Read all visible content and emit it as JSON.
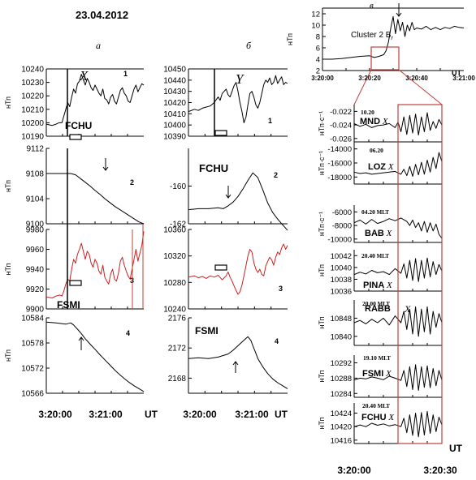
{
  "date": "23.04.2012",
  "column_letters": [
    "а",
    "б",
    "в"
  ],
  "time_axis": {
    "unit": "UT",
    "left_ticks": [
      "3:20:00",
      "3:21:00"
    ],
    "right_ticks": [
      "3:20:00",
      "3:20:30"
    ],
    "top_ticks": [
      "3:20:00",
      "3:20:20",
      "3:20:40",
      "3:21:00"
    ]
  },
  "chart_data": [
    {
      "id": "a1",
      "type": "line",
      "ylabel": "нТп",
      "station": "FCHU",
      "component": "X",
      "index": "1",
      "color": "#000000",
      "yticks": [
        10190,
        10200,
        10210,
        10220,
        10230,
        10240
      ],
      "ylim": [
        10190,
        10240
      ],
      "xlim": [
        0,
        100
      ],
      "x": [
        0,
        6,
        10,
        13,
        16,
        18,
        20,
        22,
        24,
        26,
        28,
        30,
        32,
        34,
        36,
        38,
        40,
        42,
        44,
        46,
        48,
        50,
        52,
        54,
        56,
        58,
        60,
        62,
        64,
        66,
        68,
        70,
        72,
        74,
        76,
        78,
        80,
        82,
        84,
        86,
        88,
        90,
        92,
        94,
        96,
        98,
        100
      ],
      "y": [
        10199,
        10198,
        10199,
        10200,
        10200,
        10205,
        10210,
        10215,
        10212,
        10219,
        10225,
        10222,
        10229,
        10231,
        10236,
        10232,
        10228,
        10233,
        10230,
        10226,
        10224,
        10228,
        10225,
        10222,
        10220,
        10225,
        10218,
        10217,
        10214,
        10219,
        10221,
        10216,
        10214,
        10219,
        10224,
        10226,
        10222,
        10220,
        10216,
        10215,
        10220,
        10225,
        10228,
        10223,
        10226,
        10229,
        10228
      ]
    },
    {
      "id": "a2",
      "type": "line",
      "ylabel": "нТп",
      "index": "2",
      "color": "#000000",
      "yticks": [
        9100,
        9104,
        9108,
        9112
      ],
      "ylim": [
        9100,
        9112
      ],
      "xlim": [
        0,
        100
      ],
      "x": [
        0,
        10,
        20,
        25,
        30,
        35,
        40,
        45,
        50,
        55,
        60,
        65,
        70,
        75,
        80,
        85,
        90,
        95,
        100
      ],
      "y": [
        9108,
        9108,
        9108,
        9108,
        9107.8,
        9107.2,
        9106.6,
        9106,
        9105.3,
        9104.7,
        9104,
        9103.4,
        9102.8,
        9102.3,
        9101.8,
        9101.3,
        9100.8,
        9100.3,
        9100
      ]
    },
    {
      "id": "a3",
      "type": "line",
      "ylabel": "нТп",
      "station": "FSMI",
      "index": "3",
      "color": "#cc2020",
      "yticks": [
        9900,
        9920,
        9940,
        9960,
        9980
      ],
      "ylim": [
        9900,
        9980
      ],
      "xlim": [
        0,
        100
      ],
      "x": [
        0,
        6,
        10,
        14,
        16,
        18,
        20,
        22,
        24,
        26,
        28,
        30,
        32,
        34,
        36,
        38,
        40,
        42,
        44,
        46,
        48,
        50,
        52,
        54,
        56,
        58,
        60,
        62,
        64,
        66,
        68,
        70,
        72,
        74,
        76,
        78,
        80,
        82,
        84,
        86,
        88,
        90,
        92,
        94,
        96,
        98,
        100
      ],
      "y": [
        9912,
        9911,
        9913,
        9914,
        9913,
        9918,
        9925,
        9930,
        9928,
        9940,
        9950,
        9946,
        9955,
        9960,
        9966,
        9958,
        9950,
        9958,
        9955,
        9946,
        9942,
        9950,
        9946,
        9938,
        9935,
        9944,
        9932,
        9928,
        9925,
        9935,
        9940,
        9930,
        9928,
        9936,
        9948,
        9952,
        9944,
        9938,
        9933,
        9930,
        9940,
        9950,
        9960,
        9948,
        9956,
        9964,
        9978
      ]
    },
    {
      "id": "a4",
      "type": "line",
      "ylabel": "нТп",
      "index": "4",
      "color": "#000000",
      "yticks": [
        10566,
        10572,
        10578,
        10584
      ],
      "ylim": [
        10566,
        10584
      ],
      "xlim": [
        0,
        100
      ],
      "x": [
        0,
        10,
        20,
        25,
        28,
        32,
        36,
        40,
        45,
        50,
        55,
        60,
        65,
        70,
        75,
        80,
        85,
        90,
        95,
        100
      ],
      "y": [
        10583,
        10582.8,
        10582.5,
        10582.8,
        10582.3,
        10581.3,
        10580.2,
        10579,
        10577.7,
        10576.5,
        10575.2,
        10574,
        10572.8,
        10571.6,
        10570.5,
        10569.5,
        10568.6,
        10567.8,
        10567.1,
        10566.4
      ]
    },
    {
      "id": "b1",
      "type": "line",
      "station": "",
      "component": "Y",
      "index": "1",
      "color": "#000000",
      "yticks": [
        10390,
        10400,
        10410,
        10420,
        10430,
        10440,
        10450
      ],
      "ylim": [
        10390,
        10450
      ],
      "xlim": [
        0,
        100
      ],
      "x": [
        0,
        6,
        10,
        14,
        18,
        22,
        26,
        30,
        32,
        34,
        36,
        38,
        40,
        42,
        44,
        46,
        48,
        50,
        52,
        54,
        56,
        58,
        60,
        62,
        64,
        66,
        68,
        70,
        72,
        74,
        76,
        78,
        80,
        82,
        84,
        86,
        88,
        90,
        92,
        94,
        96,
        98,
        100
      ],
      "y": [
        10412,
        10414,
        10413,
        10415,
        10416,
        10417,
        10420,
        10425,
        10422,
        10428,
        10430,
        10432,
        10427,
        10425,
        10430,
        10435,
        10438,
        10430,
        10420,
        10412,
        10402,
        10407,
        10418,
        10428,
        10430,
        10425,
        10418,
        10415,
        10420,
        10428,
        10436,
        10440,
        10438,
        10442,
        10436,
        10438,
        10444,
        10437,
        10440,
        10443,
        10436,
        10438,
        10437
      ]
    },
    {
      "id": "b2",
      "type": "line",
      "station": "FCHU",
      "index": "2",
      "color": "#000000",
      "yticks": [
        -162,
        -160
      ],
      "ylim": [
        -162,
        -158
      ],
      "xlim": [
        0,
        100
      ],
      "x": [
        0,
        10,
        20,
        30,
        35,
        40,
        45,
        50,
        55,
        60,
        65,
        70,
        75,
        80,
        85,
        90,
        95,
        100
      ],
      "y": [
        -161.25,
        -161.2,
        -161.2,
        -161.15,
        -161.2,
        -161.05,
        -160.85,
        -160.55,
        -160.15,
        -159.7,
        -159.3,
        -159.55,
        -160.2,
        -160.9,
        -161.4,
        -161.75,
        -162.05,
        -162.35
      ]
    },
    {
      "id": "b3",
      "type": "line",
      "index": "3",
      "color": "#cc2020",
      "yticks": [
        10240,
        10280,
        10320,
        10360
      ],
      "ylim": [
        10240,
        10360
      ],
      "xlim": [
        0,
        100
      ],
      "x": [
        0,
        6,
        10,
        14,
        18,
        22,
        26,
        30,
        34,
        38,
        40,
        42,
        44,
        46,
        48,
        50,
        52,
        54,
        56,
        58,
        60,
        62,
        64,
        66,
        68,
        70,
        72,
        74,
        76,
        78,
        80,
        82,
        84,
        86,
        88,
        90,
        92,
        94,
        96,
        98,
        100
      ],
      "y": [
        10288,
        10290,
        10287,
        10289,
        10286,
        10290,
        10288,
        10291,
        10284,
        10290,
        10296,
        10288,
        10282,
        10275,
        10268,
        10262,
        10266,
        10276,
        10290,
        10305,
        10320,
        10330,
        10326,
        10310,
        10300,
        10295,
        10300,
        10292,
        10290,
        10305,
        10312,
        10318,
        10314,
        10306,
        10318,
        10326,
        10322,
        10332,
        10338,
        10330,
        10336
      ]
    },
    {
      "id": "b4",
      "type": "line",
      "station": "FSMI",
      "index": "4",
      "color": "#000000",
      "yticks": [
        2168,
        2172,
        2176
      ],
      "ylim": [
        2166,
        2176
      ],
      "xlim": [
        0,
        100
      ],
      "x": [
        0,
        10,
        20,
        30,
        40,
        45,
        50,
        55,
        60,
        63,
        65,
        68,
        70,
        75,
        80,
        85,
        90,
        95,
        100
      ],
      "y": [
        2170.6,
        2170.7,
        2170.6,
        2170.8,
        2171.2,
        2171.7,
        2172.3,
        2172.9,
        2173.5,
        2173,
        2172.3,
        2171.3,
        2170.6,
        2169.5,
        2168.6,
        2167.9,
        2167.4,
        2167,
        2166.6
      ]
    },
    {
      "id": "v0",
      "type": "line",
      "ylabel": "нТп",
      "title": "Cluster 2 B",
      "title_sub": "r",
      "color": "#000000",
      "yticks": [
        2,
        4,
        6,
        8,
        10,
        12
      ],
      "ylim": [
        2,
        13
      ],
      "xlim": [
        0,
        60
      ],
      "x": [
        0,
        4,
        8,
        12,
        16,
        20,
        22,
        24,
        26,
        27,
        28,
        29,
        30,
        31,
        32,
        33,
        34,
        35,
        36,
        37,
        38,
        39,
        40,
        42,
        44,
        46,
        48,
        50,
        52,
        54,
        56,
        58,
        60
      ],
      "y": [
        4,
        4,
        4.1,
        4.3,
        4.5,
        4.6,
        4.3,
        4.5,
        4.8,
        5.5,
        7,
        9.5,
        11.5,
        8.5,
        11,
        9,
        10.5,
        8,
        10,
        9,
        10.5,
        9.2,
        9.5,
        9.3,
        9.8,
        9.2,
        9.6,
        9.2,
        9.6,
        9.4,
        9.8,
        9.6,
        9.5
      ]
    },
    {
      "id": "v1",
      "type": "line",
      "ylabel": "нТп·с⁻¹",
      "station": "MND",
      "component": "X",
      "mlt": "10.20",
      "mlt_unit": "",
      "color": "#000000",
      "yticks": [
        -0.022,
        -0.024,
        -0.026
      ],
      "ylim": [
        -0.0265,
        -0.021
      ],
      "xlim": [
        0,
        30
      ],
      "x": [
        0,
        2,
        4,
        6,
        8,
        10,
        12,
        14,
        15,
        16,
        17,
        18,
        19,
        20,
        21,
        22,
        23,
        24,
        25,
        26,
        27,
        28,
        29,
        30
      ],
      "y": [
        -0.0238,
        -0.0242,
        -0.0239,
        -0.0244,
        -0.0241,
        -0.024,
        -0.0238,
        -0.0244,
        -0.0236,
        -0.025,
        -0.0228,
        -0.0254,
        -0.0226,
        -0.0252,
        -0.0224,
        -0.0255,
        -0.0228,
        -0.025,
        -0.0222,
        -0.0248,
        -0.0235,
        -0.0245,
        -0.0232,
        -0.024
      ]
    },
    {
      "id": "v2",
      "type": "line",
      "ylabel": "нТп·с⁻¹",
      "station": "LOZ",
      "component": "X",
      "mlt": "06.20",
      "mlt_unit": "",
      "color": "#000000",
      "yticks": [
        -14000,
        -16000,
        -18000
      ],
      "ylim": [
        -19000,
        -13000
      ],
      "xlim": [
        0,
        30
      ],
      "x": [
        0,
        2,
        4,
        6,
        8,
        10,
        12,
        14,
        16,
        17,
        18,
        19,
        20,
        21,
        22,
        23,
        24,
        25,
        26,
        27,
        28,
        29,
        30
      ],
      "y": [
        -17300,
        -17500,
        -17400,
        -17600,
        -17500,
        -17400,
        -17300,
        -17200,
        -17600,
        -16900,
        -17800,
        -16500,
        -17900,
        -16200,
        -17700,
        -15900,
        -17600,
        -15600,
        -17300,
        -15200,
        -16800,
        -14500,
        -15800
      ]
    },
    {
      "id": "v3",
      "type": "line",
      "ylabel": "нТп·с⁻¹",
      "station": "BAB",
      "component": "X",
      "mlt": "04.20",
      "mlt_unit": "MLT",
      "color": "#000000",
      "yticks": [
        -6000,
        -8000,
        -10000
      ],
      "ylim": [
        -10500,
        -5000
      ],
      "xlim": [
        0,
        30
      ],
      "x": [
        0,
        2,
        4,
        6,
        8,
        10,
        12,
        14,
        16,
        18,
        19,
        20,
        21,
        22,
        23,
        24,
        25,
        26,
        27,
        28,
        29,
        30
      ],
      "y": [
        -7600,
        -7200,
        -7800,
        -7100,
        -7700,
        -7400,
        -7000,
        -7300,
        -6900,
        -7400,
        -8000,
        -7200,
        -8300,
        -7600,
        -8800,
        -7400,
        -9000,
        -7600,
        -8800,
        -7800,
        -9300,
        -9900
      ]
    },
    {
      "id": "v4",
      "type": "line",
      "ylabel": "нТп",
      "station": "PINA",
      "component": "X",
      "mlt": "20.40",
      "mlt_unit": "MLT",
      "color": "#000000",
      "yticks": [
        10042,
        10040,
        10038,
        10036
      ],
      "ylim": [
        10036,
        10043
      ],
      "xlim": [
        0,
        30
      ],
      "x": [
        0,
        2,
        4,
        6,
        8,
        10,
        12,
        14,
        16,
        17,
        18,
        19,
        20,
        21,
        22,
        23,
        24,
        25,
        26,
        27,
        28,
        29,
        30
      ],
      "y": [
        10038.8,
        10039.2,
        10038.9,
        10039.5,
        10039.1,
        10039.3,
        10038.8,
        10039.8,
        10039,
        10040.6,
        10038.2,
        10041.2,
        10037.8,
        10041.5,
        10037.6,
        10041.2,
        10038.2,
        10041.6,
        10038.4,
        10041,
        10038.8,
        10040.5,
        10039.4
      ]
    },
    {
      "id": "v5",
      "type": "line",
      "ylabel": "нТп",
      "station": "RABB",
      "component": "X",
      "mlt": "20.00",
      "mlt_unit": "MLT",
      "color": "#000000",
      "yticks": [
        10848,
        10840
      ],
      "ylim": [
        10836,
        10856
      ],
      "xlim": [
        0,
        30
      ],
      "x": [
        0,
        2,
        4,
        6,
        8,
        10,
        12,
        14,
        16,
        17,
        18,
        19,
        20,
        21,
        22,
        23,
        24,
        25,
        26,
        27,
        28,
        29,
        30
      ],
      "y": [
        10846,
        10847,
        10845.5,
        10847.5,
        10846,
        10848,
        10845,
        10849,
        10846,
        10851,
        10843,
        10852,
        10841,
        10853,
        10840,
        10852,
        10842,
        10853,
        10841,
        10851,
        10844,
        10850,
        10846
      ]
    },
    {
      "id": "v6",
      "type": "line",
      "ylabel": "нТп",
      "station": "FSMI",
      "component": "X",
      "mlt": "19.10",
      "mlt_unit": "MLT",
      "color": "#000000",
      "yticks": [
        10292,
        10288,
        10284
      ],
      "ylim": [
        10283,
        10294
      ],
      "xlim": [
        0,
        30
      ],
      "x": [
        0,
        2,
        4,
        6,
        8,
        10,
        12,
        14,
        16,
        17,
        18,
        19,
        20,
        21,
        22,
        23,
        24,
        25,
        26,
        27,
        28,
        29,
        30
      ],
      "y": [
        10287.5,
        10288,
        10287.8,
        10288.3,
        10288,
        10287.6,
        10288.5,
        10288,
        10287.4,
        10290,
        10285.8,
        10291,
        10285,
        10291.5,
        10284.8,
        10291,
        10285.6,
        10291.2,
        10285.5,
        10290.5,
        10286,
        10290,
        10287.5
      ]
    },
    {
      "id": "v7",
      "type": "line",
      "ylabel": "нТп",
      "station": "FCHU",
      "component": "X",
      "mlt": "20.40",
      "mlt_unit": "MLT",
      "color": "#000000",
      "yticks": [
        10424,
        10420,
        10416
      ],
      "ylim": [
        10415,
        10427
      ],
      "xlim": [
        0,
        30
      ],
      "x": [
        0,
        2,
        4,
        6,
        8,
        10,
        12,
        14,
        16,
        17,
        18,
        19,
        20,
        21,
        22,
        23,
        24,
        25,
        26,
        27,
        28,
        29,
        30
      ],
      "y": [
        10420,
        10420.5,
        10420,
        10421,
        10420.4,
        10420.8,
        10420.2,
        10420.6,
        10420,
        10422.5,
        10418.2,
        10423.5,
        10417.4,
        10424,
        10417,
        10424.2,
        10417.5,
        10424.5,
        10418,
        10423.5,
        10418.5,
        10422.8,
        10420.5
      ]
    }
  ]
}
